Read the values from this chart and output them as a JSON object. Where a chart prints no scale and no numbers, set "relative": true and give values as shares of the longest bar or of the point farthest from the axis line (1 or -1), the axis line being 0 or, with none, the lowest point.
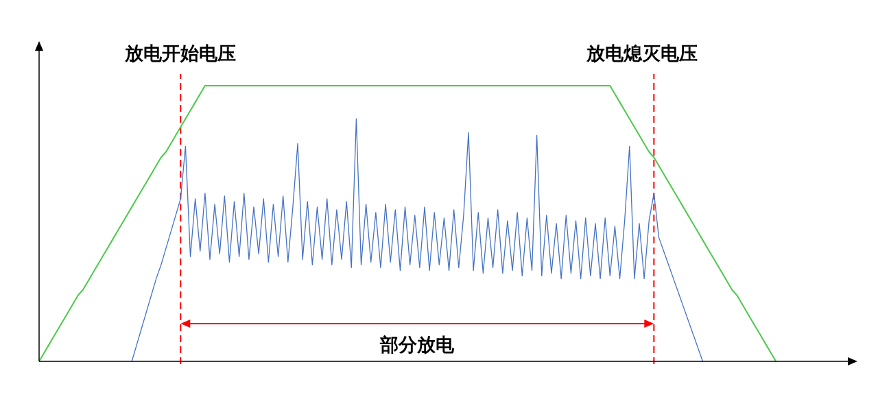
{
  "chart_data": {
    "type": "line",
    "relative": true,
    "categories": [
      null,
      null,
      null,
      null,
      null,
      null,
      null,
      null,
      null,
      null,
      null,
      null,
      null,
      null,
      null,
      null,
      null,
      null,
      null,
      null,
      null,
      null,
      null,
      null,
      null,
      null,
      null,
      null,
      null,
      null,
      null,
      null,
      null,
      null,
      null,
      null,
      null,
      null,
      null,
      null,
      null,
      null,
      null,
      null,
      null,
      null,
      null,
      null,
      null,
      null,
      null,
      null,
      null,
      null,
      null,
      null,
      null,
      null,
      null,
      null,
      null,
      null,
      null,
      null,
      null,
      null,
      null,
      null,
      null,
      null,
      null,
      null,
      null,
      null,
      null,
      null,
      null,
      null,
      null,
      null,
      null,
      null,
      null,
      null,
      null,
      null,
      null,
      null,
      null,
      null,
      null,
      null,
      null,
      null,
      null,
      null,
      null,
      null,
      null,
      null,
      null,
      null,
      null,
      null,
      null,
      null,
      null,
      null,
      null,
      null,
      null,
      null,
      null,
      null,
      null,
      null,
      null,
      null,
      null,
      null,
      null,
      null,
      null,
      null,
      null,
      null,
      null,
      null,
      null,
      null,
      null,
      null,
      null,
      null,
      null,
      null,
      null,
      null,
      null,
      null,
      null,
      null,
      null,
      null,
      null,
      null,
      null,
      null,
      null,
      null,
      null,
      null,
      null,
      null,
      null,
      null,
      null,
      null,
      null,
      null,
      null,
      null,
      null,
      null,
      null,
      null,
      null
    ],
    "series": [
      {
        "color": "#4cc94c",
        "values": [
          0,
          0.03,
          0.06,
          0.09,
          0.12,
          0.15,
          0.18,
          0.21,
          0.24,
          0.26,
          0.29,
          0.32,
          0.35,
          0.38,
          0.41,
          0.44,
          0.47,
          0.5,
          0.53,
          0.56,
          0.59,
          0.62,
          0.65,
          0.68,
          0.71,
          0.74,
          0.76,
          0.79,
          0.82,
          0.85,
          0.88,
          0.91,
          0.94,
          0.97,
          1,
          1,
          1,
          1,
          1,
          1,
          1,
          1,
          1,
          1,
          1,
          1,
          1,
          1,
          1,
          1,
          1,
          1,
          1,
          1,
          1,
          1,
          1,
          1,
          1,
          1,
          1,
          1,
          1,
          1,
          1,
          1,
          1,
          1,
          1,
          1,
          1,
          1,
          1,
          1,
          1,
          1,
          1,
          1,
          1,
          1,
          1,
          1,
          1,
          1,
          1,
          1,
          1,
          1,
          1,
          1,
          1,
          1,
          1,
          1,
          1,
          1,
          1,
          1,
          1,
          1,
          1,
          1,
          1,
          1,
          1,
          1,
          1,
          1,
          1,
          1,
          1,
          1,
          1,
          1,
          1,
          1,
          1,
          1,
          0.97,
          0.94,
          0.91,
          0.88,
          0.85,
          0.82,
          0.79,
          0.76,
          0.74,
          0.71,
          0.68,
          0.65,
          0.62,
          0.59,
          0.56,
          0.53,
          0.5,
          0.47,
          0.44,
          0.41,
          0.38,
          0.35,
          0.32,
          0.29,
          0.26,
          0.24,
          0.21,
          0.18,
          0.15,
          0.12,
          0.09,
          0.06,
          0.03,
          0,
          null,
          null,
          null,
          null,
          null,
          null,
          null,
          null,
          null,
          null,
          null,
          null,
          null,
          null,
          null
        ]
      },
      {
        "color": "#4472c4",
        "values": [
          null,
          null,
          null,
          null,
          null,
          null,
          null,
          null,
          null,
          null,
          null,
          null,
          null,
          null,
          null,
          null,
          null,
          null,
          null,
          0,
          0.06,
          0.12,
          0.18,
          0.24,
          0.3,
          0.35,
          0.41,
          0.47,
          0.53,
          0.59,
          0.78,
          0.38,
          0.59,
          0.4,
          0.61,
          0.37,
          0.57,
          0.39,
          0.6,
          0.36,
          0.58,
          0.38,
          0.61,
          0.37,
          0.56,
          0.39,
          0.59,
          0.36,
          0.57,
          0.38,
          0.6,
          0.36,
          0.56,
          0.79,
          0.37,
          0.58,
          0.35,
          0.56,
          0.37,
          0.59,
          0.35,
          0.55,
          0.37,
          0.58,
          0.34,
          0.88,
          0.35,
          0.57,
          0.36,
          0.54,
          0.34,
          0.57,
          0.36,
          0.55,
          0.33,
          0.56,
          0.35,
          0.53,
          0.34,
          0.56,
          0.33,
          0.54,
          0.35,
          0.52,
          0.33,
          0.55,
          0.34,
          0.53,
          0.83,
          0.33,
          0.54,
          0.32,
          0.52,
          0.34,
          0.55,
          0.32,
          0.51,
          0.33,
          0.54,
          0.31,
          0.52,
          0.33,
          0.82,
          0.31,
          0.53,
          0.32,
          0.5,
          0.3,
          0.53,
          0.32,
          0.51,
          0.3,
          0.52,
          0.31,
          0.5,
          0.3,
          0.52,
          0.31,
          0.49,
          0.3,
          0.51,
          0.78,
          0.3,
          0.5,
          0.3,
          0.51,
          0.61,
          0.45,
          0.4,
          0.35,
          0.3,
          0.25,
          0.2,
          0.15,
          0.1,
          0.05,
          0,
          null,
          null,
          null,
          null,
          null,
          null,
          null,
          null,
          null,
          null,
          null,
          null,
          null,
          null,
          null,
          null,
          null,
          null,
          null,
          null,
          null,
          null,
          null,
          null,
          null,
          null,
          null,
          null,
          null,
          null
        ]
      }
    ],
    "annotations": [
      "放电开始电压",
      "放电熄灭电压",
      "部分放电"
    ]
  }
}
